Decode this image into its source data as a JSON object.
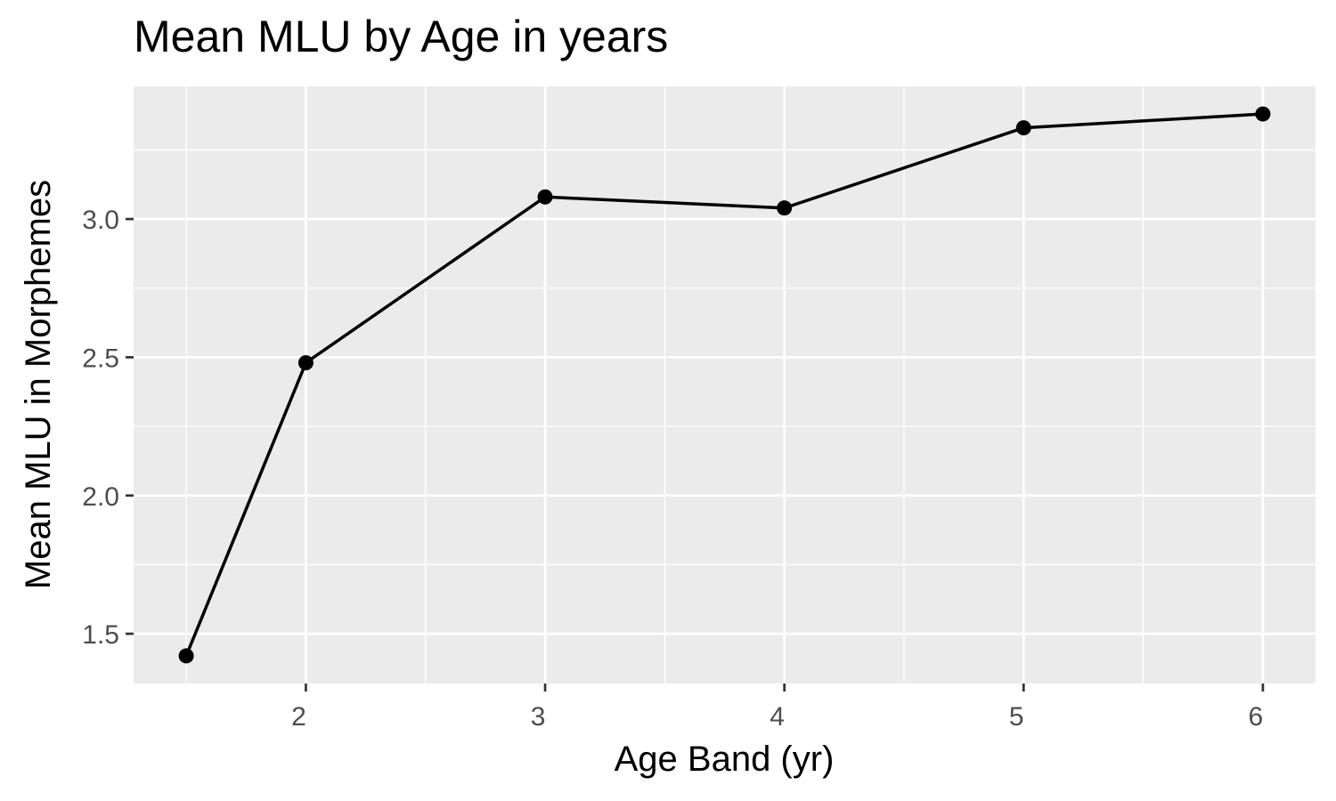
{
  "chart_data": {
    "type": "line",
    "title": "Mean MLU by Age in years",
    "xlabel": "Age Band (yr)",
    "ylabel": "Mean MLU in Morphemes",
    "x": [
      1.5,
      2,
      3,
      4,
      5,
      6
    ],
    "series": [
      {
        "values": [
          1.42,
          2.48,
          3.08,
          3.04,
          3.33,
          3.38
        ]
      }
    ],
    "xlim": [
      1.28,
      6.22
    ],
    "ylim": [
      1.32,
      3.48
    ],
    "x_ticks": [
      2,
      3,
      4,
      5,
      6
    ],
    "x_tick_labels": [
      "2",
      "3",
      "4",
      "5",
      "6"
    ],
    "y_ticks": [
      1.5,
      2.0,
      2.5,
      3.0
    ],
    "y_tick_labels": [
      "1.5",
      "2.0",
      "2.5",
      "3.0"
    ],
    "grid": true,
    "panel_color": "#ebebeb",
    "line_color": "#000000",
    "marker_color": "#000000"
  }
}
